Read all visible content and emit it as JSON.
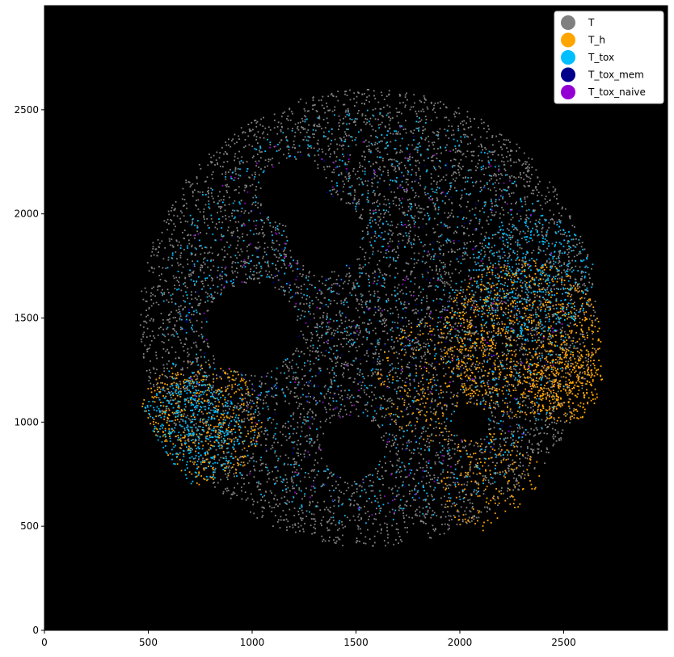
{
  "chart_data": {
    "type": "scatter",
    "title": "",
    "xlabel": "",
    "ylabel": "",
    "xlim": [
      0,
      3000
    ],
    "ylim": [
      0,
      3000
    ],
    "xticks": [
      0,
      500,
      1000,
      1500,
      2000,
      2500
    ],
    "yticks": [
      0,
      500,
      1000,
      1500,
      2000,
      2500
    ],
    "background_color": "#000000",
    "grid": false,
    "legend_position": "top-right",
    "region": {
      "shape": "circle",
      "center": [
        1560,
        1500
      ],
      "radius": 1170
    },
    "series": [
      {
        "name": "T",
        "color": "#808080",
        "clusters": [
          [
            1560,
            1500,
            1100,
            6000
          ]
        ]
      },
      {
        "name": "T_h",
        "color": "#FFA500",
        "clusters": [
          [
            2300,
            1400,
            380,
            900
          ],
          [
            750,
            1000,
            300,
            450
          ],
          [
            1900,
            1200,
            300,
            250
          ],
          [
            2150,
            700,
            250,
            180
          ],
          [
            2500,
            1200,
            200,
            300
          ]
        ]
      },
      {
        "name": "T_tox",
        "color": "#00BFFF",
        "clusters": [
          [
            1560,
            1500,
            1000,
            1200
          ],
          [
            700,
            950,
            250,
            400
          ],
          [
            2350,
            1700,
            300,
            350
          ]
        ]
      },
      {
        "name": "T_tox_mem",
        "color": "#00008B",
        "clusters": [
          [
            1560,
            1500,
            900,
            220
          ]
        ]
      },
      {
        "name": "T_tox_naive",
        "color": "#9400D3",
        "clusters": [
          [
            1560,
            1500,
            950,
            160
          ]
        ]
      }
    ]
  }
}
